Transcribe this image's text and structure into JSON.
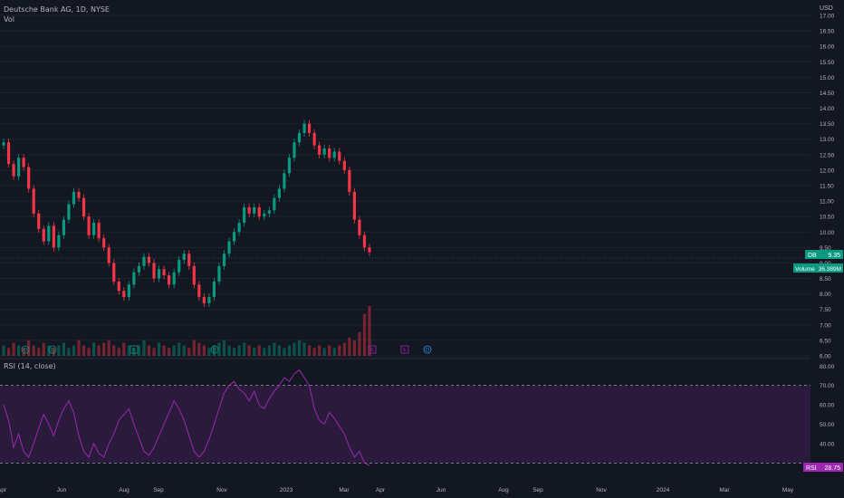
{
  "header": {
    "symbol_line": "Deutsche Bank AG, 1D, NYSE",
    "vol_label": "Vol"
  },
  "price_axis": {
    "unit": "USD",
    "ticks": [
      "17.00",
      "16.50",
      "16.00",
      "15.50",
      "15.00",
      "14.50",
      "14.00",
      "13.50",
      "13.00",
      "12.50",
      "12.00",
      "11.50",
      "11.00",
      "10.50",
      "10.00",
      "9.50",
      "9.00",
      "8.50",
      "8.00",
      "7.50",
      "7.00",
      "6.50",
      "6.00"
    ]
  },
  "price_label": {
    "text": "DB",
    "value": "9.35",
    "color": "#089981"
  },
  "volume_label": {
    "text": "Volume",
    "value": "36.389M",
    "color": "#089981"
  },
  "rsi": {
    "title": "RSI (14, close)",
    "ticks": [
      "80.00",
      "70.00",
      "60.00",
      "50.00",
      "40.00"
    ],
    "label": "RSI",
    "value": "28.75",
    "color": "#9c27b0",
    "upper_band": 70,
    "lower_band": 30
  },
  "time_axis": {
    "labels": [
      "Apr",
      "Jun",
      "Aug",
      "Sep",
      "Nov",
      "2023",
      "Mar",
      "Apr",
      "Jun",
      "Aug",
      "Sep",
      "Nov",
      "2024",
      "Mar",
      "May"
    ]
  },
  "event_markers": [
    "D",
    "D",
    "E",
    "D",
    "E",
    "E",
    "D"
  ],
  "colors": {
    "up": "#089981",
    "down": "#f23645",
    "rsi_line": "#9c27b0",
    "rsi_fill": "#2a1b3d",
    "grid": "#1e222d",
    "text": "#b2b5be"
  },
  "chart_data": {
    "type": "candlestick",
    "title": "Deutsche Bank AG, 1D, NYSE",
    "ylim": [
      6.0,
      17.0
    ],
    "close_series": [
      12.9,
      12.2,
      11.8,
      12.4,
      12.1,
      11.4,
      10.6,
      10.1,
      9.7,
      10.2,
      9.5,
      9.9,
      10.4,
      10.9,
      11.3,
      11.1,
      10.5,
      9.9,
      10.3,
      9.8,
      9.5,
      9.0,
      8.4,
      8.1,
      7.9,
      8.3,
      8.7,
      8.9,
      9.2,
      9.0,
      8.5,
      8.8,
      8.6,
      8.3,
      8.7,
      9.1,
      9.3,
      8.9,
      8.3,
      7.9,
      7.7,
      7.9,
      8.4,
      8.9,
      9.3,
      9.7,
      10.0,
      10.3,
      10.8,
      10.6,
      10.8,
      10.5,
      10.6,
      10.7,
      11.1,
      11.4,
      11.9,
      12.4,
      12.9,
      13.2,
      13.5,
      13.2,
      12.8,
      12.5,
      12.7,
      12.4,
      12.6,
      12.3,
      12.0,
      11.3,
      10.4,
      9.9,
      9.5,
      9.35
    ],
    "volume_series": [
      4,
      3,
      5,
      4,
      3,
      6,
      4,
      3,
      5,
      4,
      3,
      4,
      5,
      3,
      4,
      6,
      4,
      3,
      5,
      4,
      5,
      6,
      4,
      3,
      5,
      4,
      3,
      4,
      6,
      4,
      3,
      5,
      4,
      3,
      4,
      5,
      4,
      3,
      6,
      5,
      4,
      3,
      4,
      5,
      6,
      4,
      3,
      4,
      5,
      4,
      3,
      4,
      3,
      4,
      5,
      4,
      3,
      4,
      5,
      6,
      5,
      4,
      3,
      4,
      3,
      4,
      3,
      4,
      5,
      7,
      6,
      9,
      16,
      19
    ],
    "rsi_series": [
      60,
      52,
      38,
      45,
      36,
      33,
      40,
      48,
      55,
      50,
      44,
      52,
      58,
      62,
      56,
      44,
      36,
      33,
      40,
      35,
      33,
      40,
      45,
      52,
      55,
      58,
      50,
      43,
      36,
      34,
      38,
      44,
      50,
      56,
      62,
      58,
      52,
      44,
      36,
      33,
      36,
      42,
      50,
      58,
      66,
      70,
      72,
      68,
      66,
      62,
      67,
      60,
      58,
      63,
      67,
      70,
      74,
      72,
      76,
      78,
      74,
      70,
      58,
      52,
      50,
      56,
      53,
      49,
      45,
      38,
      33,
      36,
      30,
      28.75
    ]
  }
}
